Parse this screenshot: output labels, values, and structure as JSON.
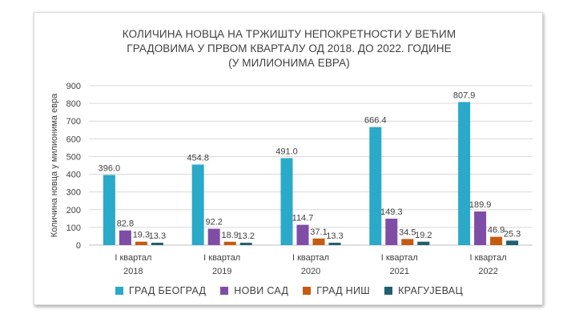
{
  "chart_data": {
    "type": "bar",
    "title_lines": [
      "КОЛИЧИНА НОВЦА НА ТРЖИШТУ НЕПОКРЕТНОСТИ У ВЕЋИМ",
      "ГРАДОВИМА У ПРВОМ КВАРТАЛУ ОД 2018. ДО 2022. ГОДИНЕ",
      "(У МИЛИОНИМА ЕВРА)"
    ],
    "ylabel": "Количина новца у милионима евра",
    "ylim": [
      0,
      900
    ],
    "yticks": [
      0,
      100,
      200,
      300,
      400,
      500,
      600,
      700,
      800,
      900
    ],
    "grid": true,
    "categories": [
      {
        "line1": "I квартал",
        "line2": "2018"
      },
      {
        "line1": "I квартал",
        "line2": "2019"
      },
      {
        "line1": "I квартал",
        "line2": "2020"
      },
      {
        "line1": "I квартал",
        "line2": "2021"
      },
      {
        "line1": "I квартал",
        "line2": "2022"
      }
    ],
    "series": [
      {
        "name": "ГРАД БЕОГРАД",
        "color": "#2aa9c8",
        "values": [
          396.0,
          454.8,
          491.0,
          666.4,
          807.9
        ]
      },
      {
        "name": "НОВИ САД",
        "color": "#7f4da6",
        "values": [
          82.8,
          92.2,
          114.7,
          149.3,
          189.9
        ]
      },
      {
        "name": "ГРАД НИШ",
        "color": "#c55a11",
        "values": [
          19.3,
          18.9,
          37.1,
          34.5,
          46.9
        ]
      },
      {
        "name": "КРАГУЈЕВАЦ",
        "color": "#1f5f6e",
        "values": [
          13.3,
          13.2,
          13.3,
          19.2,
          25.3
        ]
      }
    ],
    "legend_position": "bottom"
  }
}
